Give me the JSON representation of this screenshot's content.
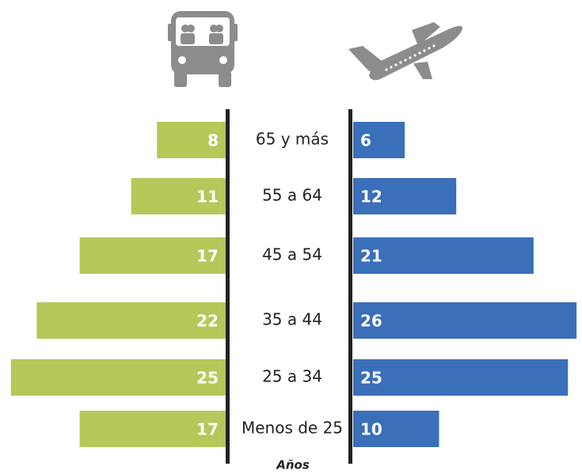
{
  "chart_data": {
    "type": "butterfly",
    "categories": [
      "65 y más",
      "55 a 64",
      "45 a 54",
      "35 a 44",
      "25 a 34",
      "Menos de 25"
    ],
    "x_label": "Años",
    "series": [
      {
        "color": "#b5c85a",
        "values": [
          8,
          11,
          17,
          22,
          25,
          17
        ]
      },
      {
        "color": "#3a6fba",
        "values": [
          6,
          12,
          21,
          26,
          25,
          10
        ]
      }
    ]
  }
}
